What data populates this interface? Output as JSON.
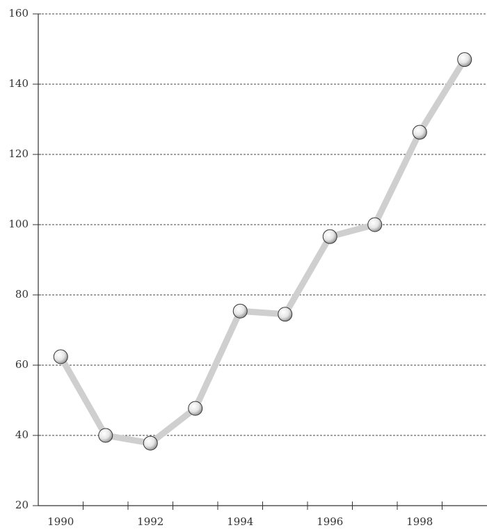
{
  "chart_data": {
    "type": "line",
    "categories": [
      "1990",
      null,
      "1992",
      null,
      "1994",
      null,
      "1996",
      null,
      "1998",
      null
    ],
    "series": [
      {
        "color": "#cfcfcf",
        "values": [
          62.4,
          40,
          37.8,
          47.7,
          75.4,
          74.5,
          96.6,
          100,
          126.3,
          147
        ]
      }
    ],
    "ylim": [
      20,
      160
    ],
    "yticks": [
      20,
      40,
      60,
      80,
      100,
      120,
      140,
      160
    ],
    "grid": true
  }
}
